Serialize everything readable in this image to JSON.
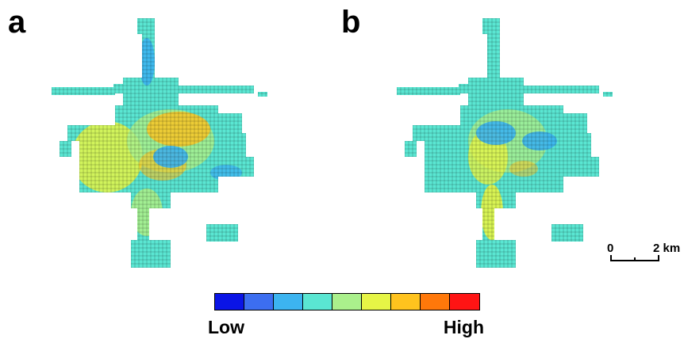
{
  "panels": [
    {
      "label": "a"
    },
    {
      "label": "b"
    }
  ],
  "scale_bar": {
    "start_label": "0",
    "end_label": "2 km"
  },
  "legend": {
    "low_label": "Low",
    "high_label": "High",
    "colors": [
      "#0a14e6",
      "#3c6ef0",
      "#3cb4f0",
      "#5ae6d2",
      "#aaf08c",
      "#e6f546",
      "#ffc31e",
      "#ff780a",
      "#ff1414"
    ]
  },
  "palette_map_a": {
    "base": "#5ae6d2",
    "cool": "#3cb4f0",
    "mid": "#aaf08c",
    "warm": "#e6f546",
    "hot": "#ffc31e"
  },
  "palette_map_b": {
    "base": "#5ae6d2",
    "cool": "#3cb4f0",
    "mid": "#aaf08c",
    "warm": "#e6f546",
    "hot": "#ffc31e"
  }
}
